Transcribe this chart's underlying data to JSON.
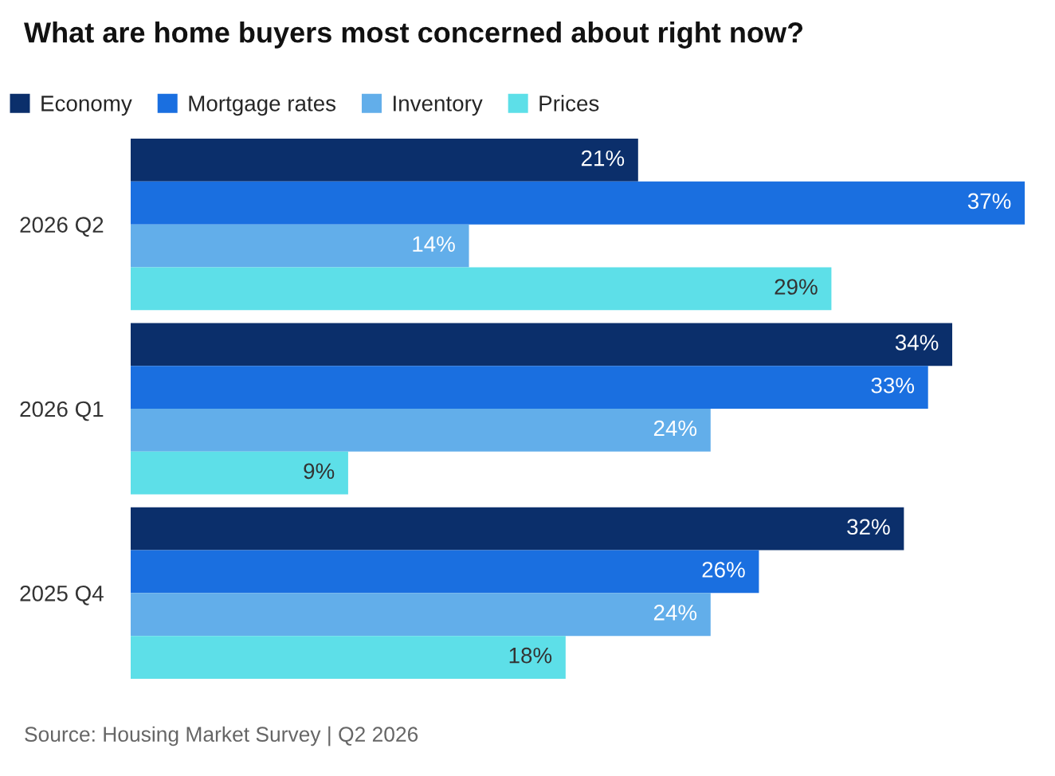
{
  "chart_data": {
    "type": "bar",
    "orientation": "horizontal",
    "title": "What are home buyers most concerned about right now?",
    "categories": [
      "2026 Q2",
      "2026 Q1",
      "2025 Q4"
    ],
    "series": [
      {
        "name": "Economy",
        "color": "#0b2f6b",
        "values": [
          21,
          34,
          32
        ],
        "value_labels": [
          "21%",
          "34%",
          "32%"
        ]
      },
      {
        "name": "Mortgage rates",
        "color": "#1a6fe0",
        "values": [
          37,
          33,
          26
        ],
        "value_labels": [
          "37%",
          "33%",
          "26%"
        ]
      },
      {
        "name": "Inventory",
        "color": "#62aeea",
        "values": [
          14,
          24,
          24
        ],
        "value_labels": [
          "14%",
          "24%",
          "24%"
        ]
      },
      {
        "name": "Prices",
        "color": "#5ddfe8",
        "values": [
          29,
          9,
          18
        ],
        "value_labels": [
          "29%",
          "9%",
          "18%"
        ]
      }
    ],
    "legend": "top",
    "annotations": [
      "Source: Housing Market Survey | Q2 2026"
    ]
  }
}
